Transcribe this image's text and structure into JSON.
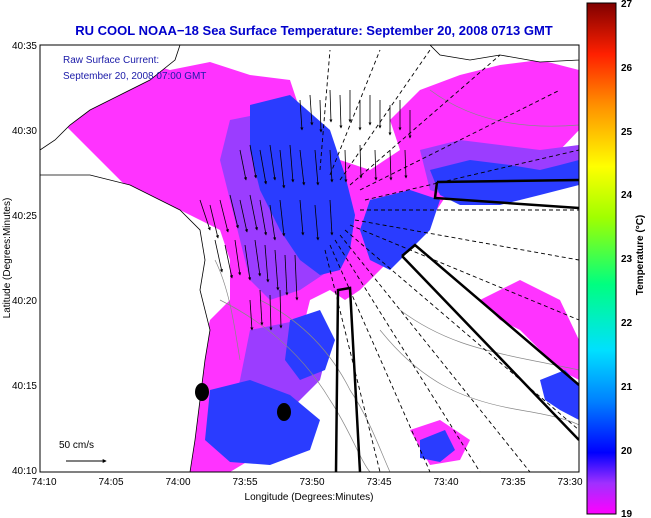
{
  "title": "RU COOL  NOAA−18  Sea Surface Temperature:  September 20, 2008 0713 GMT",
  "legend": {
    "label_line1": "Raw Surface Current:",
    "label_line2": "September 20, 2008 07:00 GMT"
  },
  "scale_label": "50 cm/s",
  "axes": {
    "xlabel": "Longitude (Degrees:Minutes)",
    "ylabel": "Latitude (Degrees:Minutes)",
    "x_ticks": [
      "74:10",
      "74:05",
      "74:00",
      "73:55",
      "73:50",
      "73:45",
      "73:40",
      "73:35",
      "73:30"
    ],
    "y_ticks": [
      "40:35",
      "40:30",
      "40:25",
      "40:20",
      "40:15",
      "40:10"
    ]
  },
  "colorbar": {
    "label": "Temperature (°C)",
    "ticks": [
      "27",
      "26",
      "25",
      "24",
      "23",
      "22",
      "21",
      "20",
      "19"
    ],
    "min": 19,
    "max": 27
  },
  "colors": {
    "title": "#0000cc",
    "legend": "#1a1aa8",
    "land": "#ffffff",
    "warm_water": "#ff33ff",
    "mid_water": "#9b3dff",
    "cool_water": "#2a3cff"
  }
}
